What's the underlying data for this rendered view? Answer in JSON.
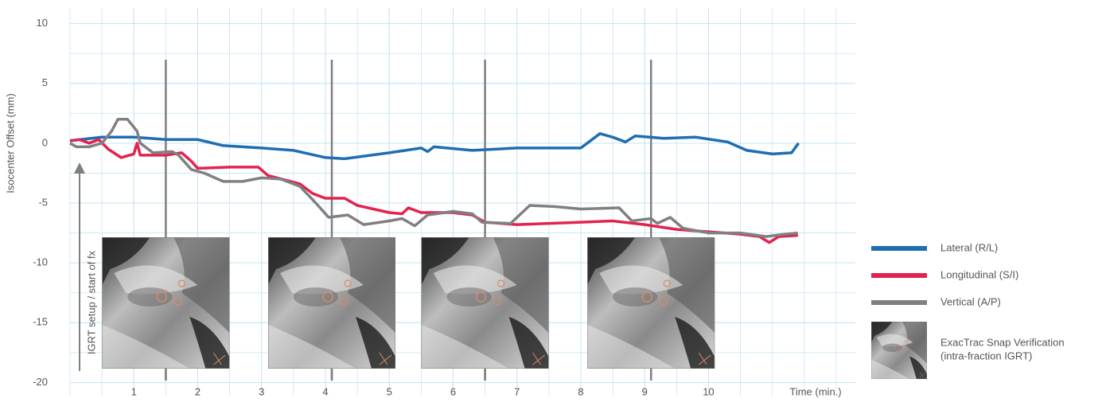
{
  "chart_data": {
    "type": "line",
    "y_label": "Isocenter Offset (mm)",
    "x_label": "Time (min.)",
    "annotation": "IGRT setup / start of fx",
    "xlim": [
      0,
      12.3
    ],
    "ylim": [
      -21.1,
      11.3
    ],
    "xticks": [
      1,
      2,
      3,
      4,
      5,
      6,
      7,
      8,
      9,
      10
    ],
    "yticks": [
      -20,
      -15,
      -10,
      -5,
      0,
      5,
      10
    ],
    "grid": true,
    "grid_color": "#c4e6f4",
    "snap_times": [
      1.5,
      4.1,
      6.5,
      9.1
    ],
    "snap_color": "#7f7f7f",
    "snap_label": [
      "ExacTrac Snap Verification",
      "(intra-fraction IGRT)"
    ],
    "series": [
      {
        "name": "Lateral (R/L)",
        "color": "#1f6db3",
        "x": [
          0,
          0.5,
          1.0,
          1.5,
          2.0,
          2.4,
          3.0,
          3.5,
          4.0,
          4.3,
          5.0,
          5.5,
          5.6,
          5.7,
          6.3,
          7.0,
          7.6,
          8.0,
          8.3,
          8.5,
          8.7,
          8.85,
          9.3,
          9.8,
          10.3,
          10.6,
          11.0,
          11.3,
          11.41
        ],
        "values": [
          0.2,
          0.5,
          0.5,
          0.3,
          0.3,
          -0.2,
          -0.4,
          -0.6,
          -1.2,
          -1.3,
          -0.8,
          -0.4,
          -0.7,
          -0.3,
          -0.6,
          -0.4,
          -0.4,
          -0.4,
          0.8,
          0.5,
          0.1,
          0.6,
          0.4,
          0.5,
          0.1,
          -0.6,
          -0.9,
          -0.8,
          0
        ]
      },
      {
        "name": "Longitudinal (S/I)",
        "color": "#e2234e",
        "x": [
          0,
          0.15,
          0.3,
          0.45,
          0.6,
          0.8,
          1.0,
          1.05,
          1.1,
          1.5,
          1.75,
          1.9,
          2.0,
          2.5,
          2.95,
          3.1,
          3.6,
          3.8,
          4.0,
          4.3,
          4.5,
          5.0,
          5.2,
          5.3,
          5.5,
          6.0,
          6.3,
          6.5,
          7.0,
          7.5,
          8.0,
          8.5,
          9.0,
          9.5,
          10.0,
          10.5,
          10.8,
          10.95,
          11.1,
          11.4
        ],
        "values": [
          0.2,
          0.3,
          0,
          0.3,
          -0.5,
          -1.2,
          -0.9,
          0,
          -1.0,
          -1.0,
          -0.8,
          -1.5,
          -2.1,
          -2.0,
          -2.0,
          -2.7,
          -3.4,
          -4.2,
          -4.6,
          -4.6,
          -5.2,
          -5.8,
          -5.9,
          -5.4,
          -5.8,
          -5.8,
          -6.0,
          -6.6,
          -6.8,
          -6.7,
          -6.6,
          -6.5,
          -6.8,
          -7.2,
          -7.4,
          -7.6,
          -7.8,
          -8.3,
          -7.8,
          -7.7
        ]
      },
      {
        "name": "Vertical (A/P)",
        "color": "#808082",
        "x": [
          0,
          0.1,
          0.3,
          0.5,
          0.65,
          0.75,
          0.9,
          1.05,
          1.1,
          1.3,
          1.6,
          1.7,
          1.9,
          2.1,
          2.4,
          2.7,
          3.0,
          3.3,
          3.6,
          3.85,
          4.05,
          4.35,
          4.6,
          5.0,
          5.2,
          5.4,
          5.6,
          6.0,
          6.3,
          6.45,
          6.9,
          7.2,
          7.6,
          8.0,
          8.6,
          8.8,
          9.1,
          9.2,
          9.4,
          9.6,
          10.0,
          10.5,
          10.9,
          11.2,
          11.4
        ],
        "values": [
          0,
          -0.3,
          -0.3,
          0,
          1.0,
          2.0,
          2.0,
          1.0,
          0,
          -0.8,
          -0.7,
          -1.0,
          -2.2,
          -2.5,
          -3.2,
          -3.2,
          -2.9,
          -3.0,
          -3.6,
          -5.0,
          -6.2,
          -6.0,
          -6.8,
          -6.5,
          -6.3,
          -6.9,
          -6.0,
          -5.7,
          -5.9,
          -6.6,
          -6.7,
          -5.2,
          -5.3,
          -5.5,
          -5.4,
          -6.5,
          -6.3,
          -6.7,
          -6.2,
          -7.1,
          -7.5,
          -7.5,
          -7.8,
          -7.6,
          -7.5
        ]
      }
    ]
  }
}
